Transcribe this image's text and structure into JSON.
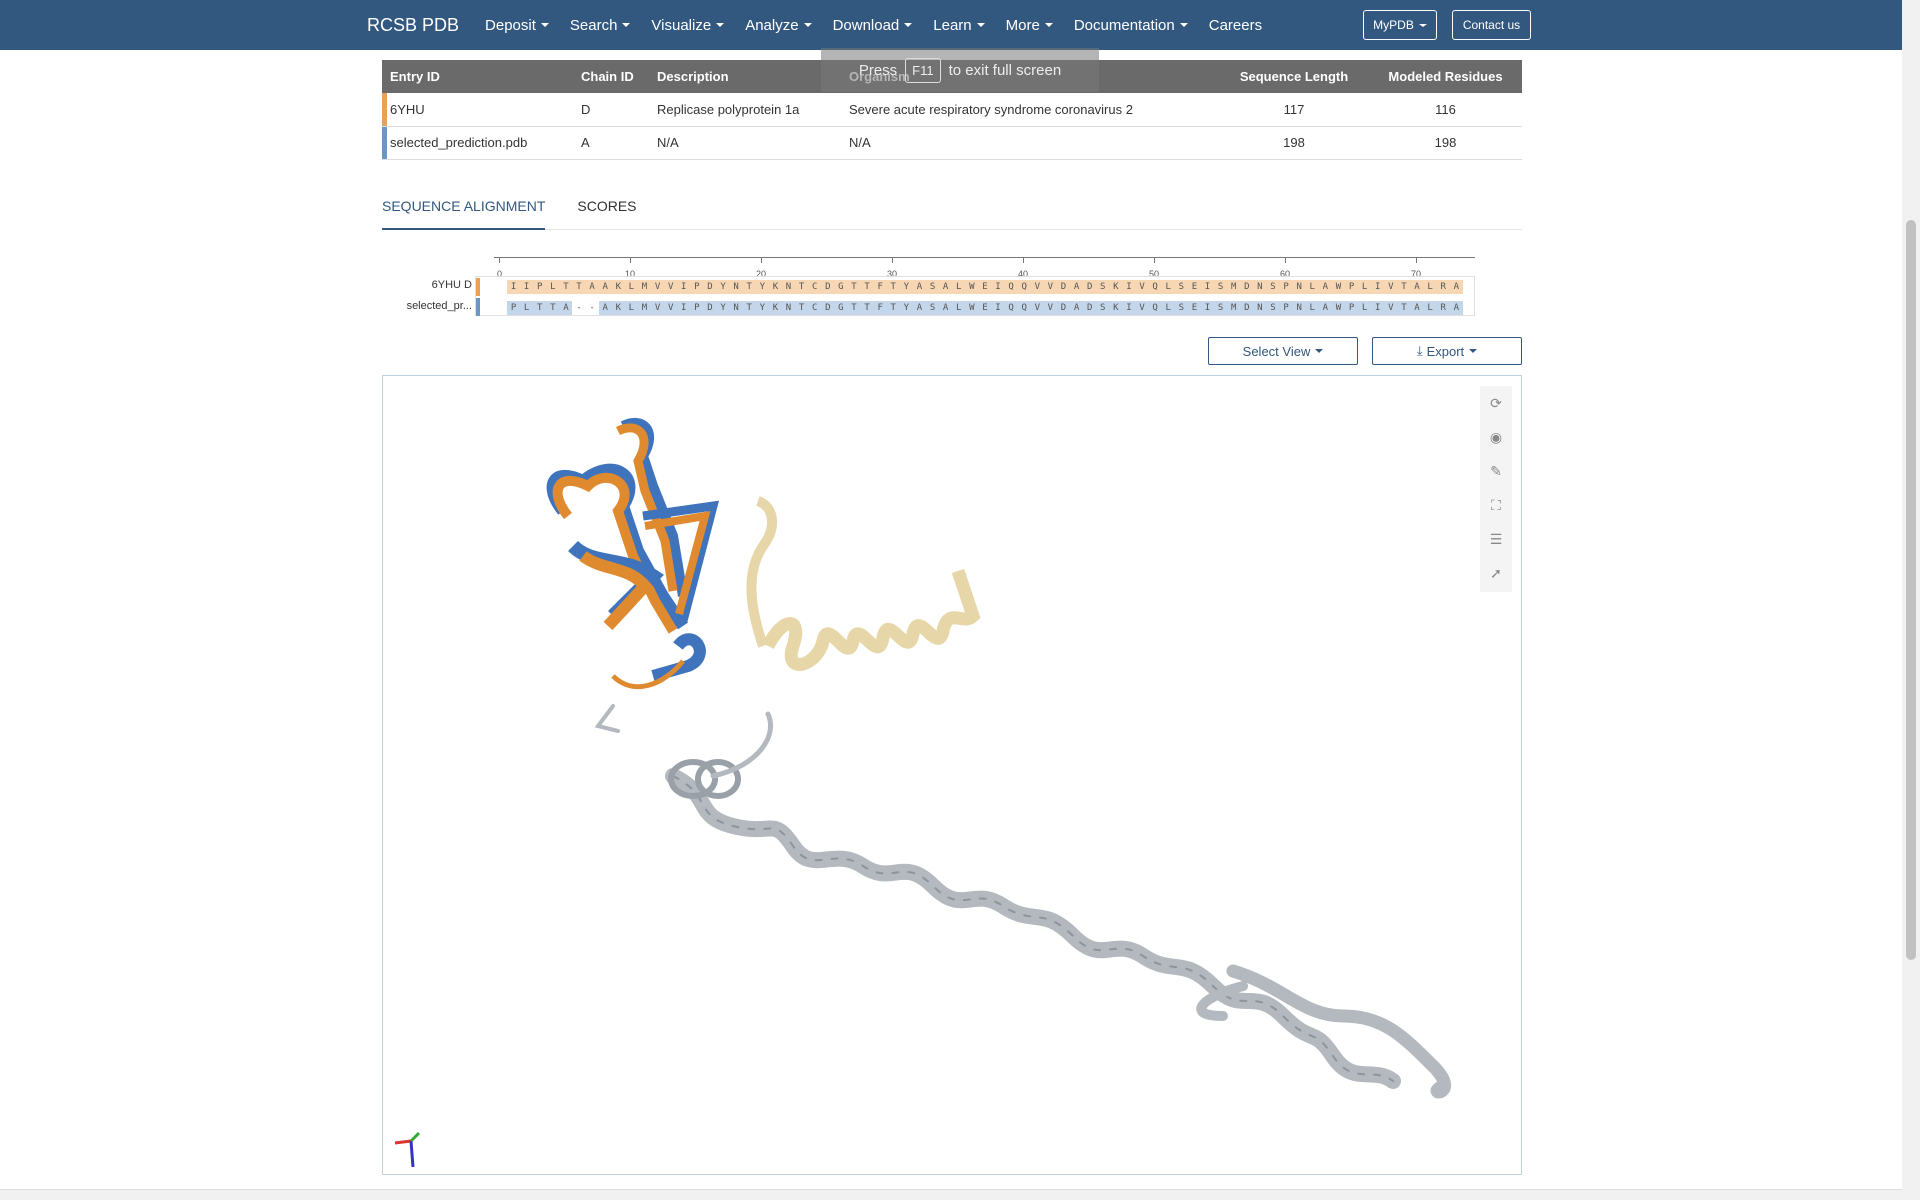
{
  "navbar": {
    "brand": "RCSB PDB",
    "items": [
      "Deposit",
      "Search",
      "Visualize",
      "Analyze",
      "Download",
      "Learn",
      "More",
      "Documentation"
    ],
    "careers": "Careers",
    "mypdb": "MyPDB",
    "contact": "Contact us"
  },
  "fullscreen_notice": {
    "prefix": "Press",
    "key": "F11",
    "suffix": "to exit full screen"
  },
  "table": {
    "headers": [
      "Entry ID",
      "Chain ID",
      "Description",
      "Organism",
      "Sequence Length",
      "Modeled Residues"
    ],
    "rows": [
      {
        "entry": "6YHU",
        "chain": "D",
        "description": "Replicase polyprotein 1a",
        "organism": "Severe acute respiratory syndrome coronavirus 2",
        "length": "117",
        "modeled": "116",
        "color": "#e8a15a"
      },
      {
        "entry": "selected_prediction.pdb",
        "chain": "A",
        "description": "N/A",
        "organism": "N/A",
        "length": "198",
        "modeled": "198",
        "color": "#6a96c8"
      }
    ]
  },
  "tabs": [
    "SEQUENCE ALIGNMENT",
    "SCORES"
  ],
  "alignment": {
    "ruler_ticks": [
      "0",
      "10",
      "20",
      "30",
      "40",
      "50",
      "60",
      "70"
    ],
    "labels": [
      "6YHU D",
      "selected_pr..."
    ],
    "seq1": "IIPLTTAAKLMVVIPDYNTYKNTCDGTTFTYASALWEIQQVVDADSKIVQLSEISMDNSPNLAWPLIVTALRA",
    "seq2": "PLTTA--AKLMVVIPDYNTYKNTCDGTTFTYASALWEIQQVVDADSKIVQLSEISMDNSPNLAWPLIVTALRA",
    "seq1_color": "#f7d6b4",
    "seq2_color": "#c4d6ea"
  },
  "buttons": {
    "select_view": "Select View",
    "export": "Export"
  },
  "viewer": {
    "colors": {
      "reference": "#e08a30",
      "prediction": "#3f74bc",
      "unaligned_ref": "#e6d6a8",
      "unaligned_pred": "#b4b8bf"
    },
    "tools": [
      "reset-icon",
      "camera-icon",
      "wrench-icon",
      "fullscreen-icon",
      "settings-icon",
      "cursor-icon"
    ]
  }
}
